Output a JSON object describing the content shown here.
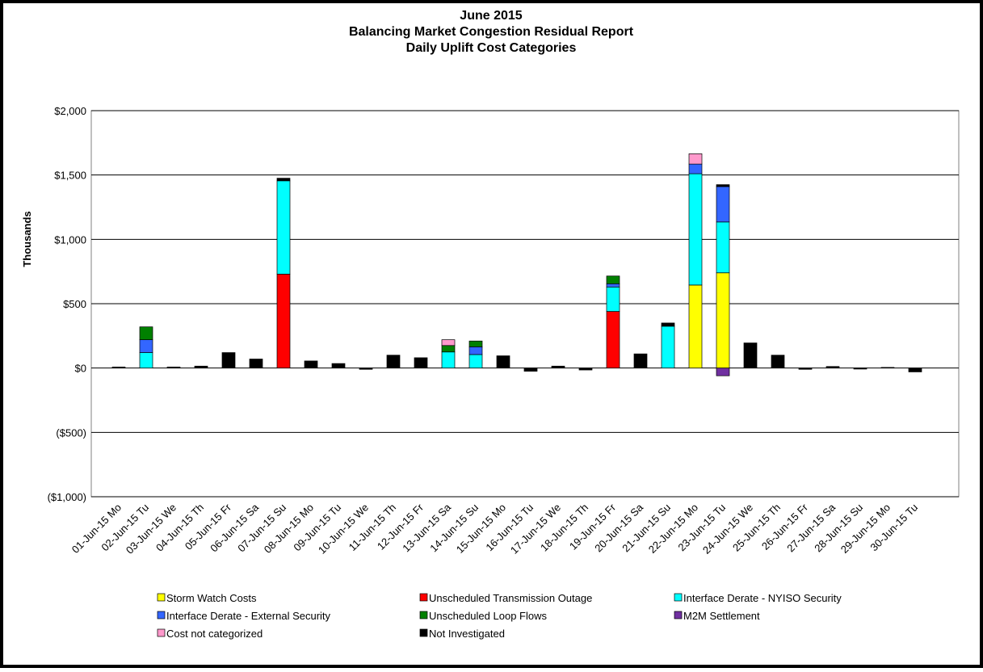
{
  "chart_data": {
    "type": "stacked_bar",
    "title": [
      "June 2015",
      "Balancing Market Congestion Residual Report",
      "Daily Uplift Cost Categories"
    ],
    "y_label": "Thousands",
    "categories": [
      "01-Jun-15 Mo",
      "02-Jun-15 Tu",
      "03-Jun-15 We",
      "04-Jun-15 Th",
      "05-Jun-15 Fr",
      "06-Jun-15 Sa",
      "07-Jun-15 Su",
      "08-Jun-15 Mo",
      "09-Jun-15 Tu",
      "10-Jun-15 We",
      "11-Jun-15 Th",
      "12-Jun-15 Fr",
      "13-Jun-15 Sa",
      "14-Jun-15 Su",
      "15-Jun-15 Mo",
      "16-Jun-15 Tu",
      "17-Jun-15 We",
      "18-Jun-15 Th",
      "19-Jun-15 Fr",
      "20-Jun-15 Sa",
      "21-Jun-15 Su",
      "22-Jun-15 Mo",
      "23-Jun-15 Tu",
      "24-Jun-15 We",
      "25-Jun-15 Th",
      "26-Jun-15 Fr",
      "27-Jun-15 Sa",
      "28-Jun-15 Su",
      "29-Jun-15 Mo",
      "30-Jun-15 Tu"
    ],
    "series": [
      {
        "name": "Storm Watch Costs",
        "color": "#ffff00",
        "values": [
          0,
          0,
          0,
          0,
          0,
          0,
          0,
          0,
          0,
          0,
          0,
          0,
          0,
          0,
          0,
          0,
          0,
          0,
          0,
          0,
          0,
          645,
          740,
          0,
          0,
          0,
          0,
          0,
          0,
          0
        ]
      },
      {
        "name": "Unscheduled Transmission Outage",
        "color": "#ff0000",
        "values": [
          0,
          0,
          0,
          0,
          0,
          0,
          730,
          0,
          0,
          0,
          0,
          0,
          0,
          0,
          0,
          0,
          0,
          0,
          440,
          0,
          0,
          0,
          0,
          0,
          0,
          0,
          0,
          0,
          0,
          0
        ]
      },
      {
        "name": "Interface Derate - NYISO Security",
        "color": "#00ffff",
        "values": [
          0,
          120,
          0,
          0,
          0,
          0,
          725,
          0,
          0,
          0,
          0,
          0,
          125,
          105,
          0,
          0,
          0,
          0,
          190,
          0,
          325,
          865,
          395,
          0,
          0,
          0,
          0,
          0,
          0,
          0
        ]
      },
      {
        "name": "Interface Derate - External Security",
        "color": "#3366ff",
        "values": [
          0,
          100,
          0,
          0,
          0,
          0,
          0,
          0,
          0,
          0,
          0,
          0,
          0,
          60,
          0,
          0,
          0,
          0,
          25,
          0,
          0,
          75,
          275,
          0,
          0,
          0,
          0,
          0,
          0,
          0
        ]
      },
      {
        "name": "Unscheduled Loop Flows",
        "color": "#008000",
        "values": [
          0,
          100,
          0,
          0,
          0,
          0,
          0,
          0,
          0,
          0,
          0,
          0,
          50,
          45,
          0,
          0,
          0,
          0,
          60,
          0,
          0,
          0,
          0,
          0,
          0,
          0,
          0,
          0,
          0,
          0
        ]
      },
      {
        "name": "M2M Settlement",
        "color": "#7030a0",
        "values": [
          0,
          0,
          0,
          0,
          0,
          0,
          0,
          0,
          0,
          0,
          0,
          0,
          0,
          0,
          0,
          0,
          0,
          0,
          0,
          0,
          0,
          0,
          -60,
          0,
          0,
          0,
          0,
          0,
          0,
          0
        ]
      },
      {
        "name": "Cost not categorized",
        "color": "#ff99cc",
        "values": [
          0,
          0,
          0,
          0,
          0,
          0,
          0,
          0,
          0,
          0,
          0,
          0,
          45,
          0,
          0,
          0,
          0,
          0,
          0,
          0,
          0,
          80,
          0,
          0,
          0,
          0,
          0,
          0,
          0,
          0
        ]
      },
      {
        "name": "Not Investigated",
        "color": "#000000",
        "values": [
          8,
          0,
          8,
          15,
          120,
          70,
          20,
          55,
          35,
          -10,
          100,
          80,
          0,
          0,
          95,
          -25,
          15,
          -15,
          0,
          110,
          25,
          0,
          15,
          195,
          100,
          -10,
          12,
          -8,
          5,
          -30
        ]
      }
    ],
    "ylim": [
      -1000,
      2000
    ],
    "yticks": [
      {
        "value": -1000,
        "label": "($1,000)"
      },
      {
        "value": -500,
        "label": "($500)"
      },
      {
        "value": 0,
        "label": "$0"
      },
      {
        "value": 500,
        "label": "$500"
      },
      {
        "value": 1000,
        "label": "$1,000"
      },
      {
        "value": 1500,
        "label": "$1,500"
      },
      {
        "value": 2000,
        "label": "$2,000"
      }
    ],
    "negative_label_color": "#ff0000",
    "grid": true
  }
}
